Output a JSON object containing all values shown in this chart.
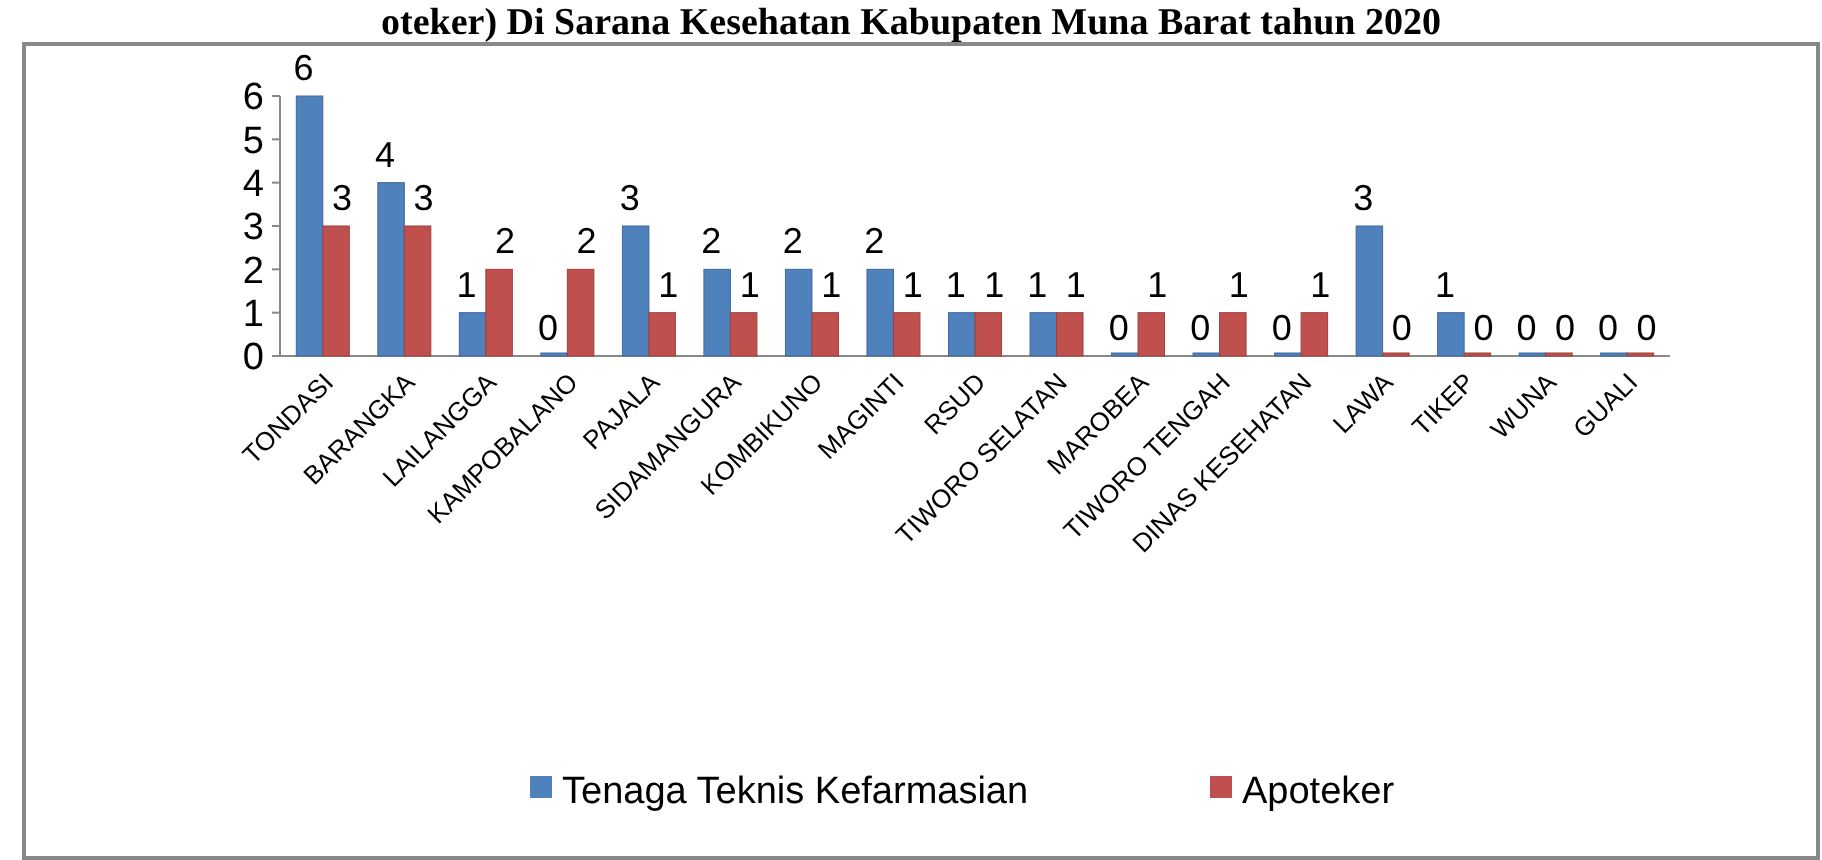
{
  "chart_data": {
    "type": "bar",
    "title": "oteker) Di Sarana Kesehatan Kabupaten Muna Barat tahun 2020",
    "categories": [
      "TONDASI",
      "BARANGKA",
      "LAILANGGA",
      "KAMPOBALANO",
      "PAJALA",
      "SIDAMANGURA",
      "KOMBIKUNO",
      "MAGINTI",
      "RSUD",
      "TIWORO SELATAN",
      "MAROBEA",
      "TIWORO TENGAH",
      "DINAS KESEHATAN",
      "LAWA",
      "TIKEP",
      "WUNA",
      "GUALI"
    ],
    "series": [
      {
        "name": "Tenaga Teknis Kefarmasian",
        "color": "#4f81bd",
        "values": [
          6,
          4,
          1,
          0,
          3,
          2,
          2,
          2,
          1,
          1,
          0,
          0,
          0,
          3,
          1,
          0,
          0
        ]
      },
      {
        "name": "Apoteker",
        "color": "#c0504d",
        "values": [
          3,
          3,
          2,
          2,
          1,
          1,
          1,
          1,
          1,
          1,
          1,
          1,
          1,
          0,
          0,
          0,
          0
        ]
      }
    ],
    "ylim": [
      0,
      6
    ],
    "yticks": [
      0,
      1,
      2,
      3,
      4,
      5,
      6
    ],
    "grid": false,
    "legend": "bottom",
    "data_labels": true
  }
}
